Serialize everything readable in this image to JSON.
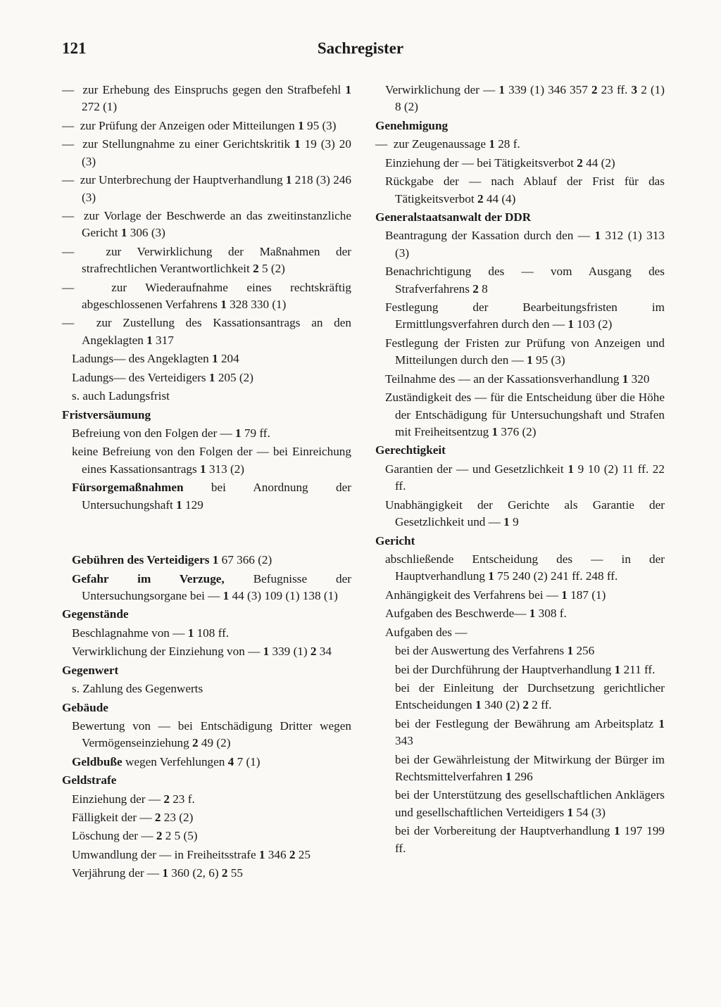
{
  "page_number": "121",
  "title": "Sachregister",
  "left_col": [
    {
      "t": "dash",
      "html": "zur Erhebung des Einspruchs gegen den Strafbefehl  <b>1</b> 272 (1)"
    },
    {
      "t": "dash",
      "html": "zur Prüfung der Anzeigen oder Mitteilungen  <b>1</b> 95 (3)"
    },
    {
      "t": "dash",
      "html": "zur Stellungnahme zu einer Gerichtskritik  <b>1</b> 19 (3) 20 (3)"
    },
    {
      "t": "dash",
      "html": "zur Unterbrechung der Hauptverhandlung  <b>1</b> 218 (3) 246 (3)"
    },
    {
      "t": "dash",
      "html": "zur Vorlage der Beschwerde an das zweitinstanzliche Gericht  <b>1</b> 306 (3)"
    },
    {
      "t": "dash",
      "html": "zur Verwirklichung der Maßnahmen der strafrechtlichen Verantwortlichkeit  <b>2</b> 5 (2)"
    },
    {
      "t": "dash",
      "html": "zur Wiederaufnahme eines rechtskräftig abgeschlossenen Verfahrens  <b>1</b> 328 330 (1)"
    },
    {
      "t": "dash",
      "html": "zur Zustellung des Kassationsantrags an den Angeklagten  <b>1</b> 317"
    },
    {
      "t": "line",
      "html": "Ladungs— des Angeklagten  <b>1</b> 204"
    },
    {
      "t": "line",
      "html": "Ladungs— des Verteidigers  <b>1</b> 205 (2)"
    },
    {
      "t": "line",
      "html": "s. auch Ladungsfrist"
    },
    {
      "t": "head",
      "html": "Fristversäumung"
    },
    {
      "t": "line",
      "html": "Befreiung von den Folgen der —  <b>1</b> 79 ff."
    },
    {
      "t": "line",
      "html": "keine Befreiung von den Folgen der — bei Einreichung eines Kassationsantrags  <b>1</b> 313 (2)"
    },
    {
      "t": "line",
      "html": "<b>Fürsorgemaßnahmen</b> bei Anordnung der Untersuchungshaft  <b>1</b> 129"
    },
    {
      "t": "gap"
    },
    {
      "t": "line",
      "html": "<b>Gebühren des Verteidigers</b>  <b>1</b> 67 366 (2)"
    },
    {
      "t": "line",
      "html": "<b>Gefahr im Verzuge,</b> Befugnisse der Untersuchungsorgane bei —  <b>1</b> 44 (3) 109 (1) 138 (1)"
    },
    {
      "t": "head",
      "html": "Gegenstände"
    },
    {
      "t": "line",
      "html": "Beschlagnahme von —  <b>1</b> 108 ff."
    },
    {
      "t": "line",
      "html": "Verwirklichung der Einziehung von —  <b>1</b> 339 (1) <b>2</b> 34"
    },
    {
      "t": "head",
      "html": "Gegenwert"
    },
    {
      "t": "line",
      "html": "s. Zahlung des Gegenwerts"
    },
    {
      "t": "head",
      "html": "Gebäude"
    },
    {
      "t": "line",
      "html": "Bewertung von — bei Entschädigung Dritter wegen Vermögenseinziehung  <b>2</b> 49 (2)"
    },
    {
      "t": "line",
      "html": "<b>Geldbuße</b> wegen Verfehlungen  <b>4</b> 7 (1)"
    },
    {
      "t": "head",
      "html": "Geldstrafe"
    },
    {
      "t": "line",
      "html": "Einziehung der —  <b>2</b> 23 f."
    },
    {
      "t": "line",
      "html": "Fälligkeit der —  <b>2</b> 23 (2)"
    },
    {
      "t": "line",
      "html": "Löschung der —  <b>2</b> 2 5 (5)"
    },
    {
      "t": "line",
      "html": "Umwandlung der — in Freiheitsstrafe  <b>1</b> 346 <b>2</b> 25"
    },
    {
      "t": "line",
      "html": "Verjährung der —  <b>1</b> 360 (2, 6) <b>2</b> 55"
    }
  ],
  "right_col": [
    {
      "t": "line",
      "html": "Verwirklichung der —  <b>1</b> 339 (1) 346 357 <b>2</b> 23 ff. <b>3</b> 2 (1) 8 (2)"
    },
    {
      "t": "head",
      "html": "Genehmigung"
    },
    {
      "t": "dash",
      "html": "zur Zeugenaussage  <b>1</b> 28 f."
    },
    {
      "t": "line",
      "html": "Einziehung der — bei Tätigkeitsverbot  <b>2</b> 44 (2)"
    },
    {
      "t": "line",
      "html": "Rückgabe der — nach Ablauf der Frist für das Tätigkeitsverbot  <b>2</b> 44 (4)"
    },
    {
      "t": "head",
      "html": "Generalstaatsanwalt der DDR"
    },
    {
      "t": "line",
      "html": "Beantragung der Kassation durch den —  <b>1</b> 312 (1) 313 (3)"
    },
    {
      "t": "line",
      "html": "Benachrichtigung des — vom Ausgang des Strafverfahrens  <b>2</b> 8"
    },
    {
      "t": "line",
      "html": "Festlegung der Bearbeitungsfristen im Ermittlungsverfahren durch den —  <b>1</b> 103 (2)"
    },
    {
      "t": "line",
      "html": "Festlegung der Fristen zur Prüfung von Anzeigen und Mitteilungen durch den —  <b>1</b> 95 (3)"
    },
    {
      "t": "line",
      "html": "Teilnahme des — an der Kassationsverhandlung  <b>1</b> 320"
    },
    {
      "t": "line",
      "html": "Zuständigkeit des — für die Entscheidung über die Höhe der Entschädigung für Untersuchungshaft und Strafen mit Freiheitsentzug  <b>1</b> 376 (2)"
    },
    {
      "t": "head",
      "html": "Gerechtigkeit"
    },
    {
      "t": "line",
      "html": "Garantien der — und Gesetzlichkeit  <b>1</b> 9 10 (2) 11 ff. 22 ff."
    },
    {
      "t": "line",
      "html": "Unabhängigkeit der Gerichte als Garantie der Gesetzlichkeit und —  <b>1</b> 9"
    },
    {
      "t": "head",
      "html": "Gericht"
    },
    {
      "t": "line",
      "html": "abschließende Entscheidung des — in der Hauptverhandlung  <b>1</b> 75 240 (2) 241 ff. 248 ff."
    },
    {
      "t": "line",
      "html": "Anhängigkeit des Verfahrens bei —  <b>1</b> 187 (1)"
    },
    {
      "t": "line",
      "html": "Aufgaben des Beschwerde—  <b>1</b> 308 f."
    },
    {
      "t": "line",
      "html": "Aufgaben des —"
    },
    {
      "t": "sub",
      "html": "bei der Auswertung des Verfahrens  <b>1</b> 256"
    },
    {
      "t": "sub",
      "html": "bei der Durchführung der Hauptverhandlung  <b>1</b> 211 ff."
    },
    {
      "t": "sub",
      "html": "bei der Einleitung der Durchsetzung gerichtlicher Entscheidungen  <b>1</b> 340 (2) <b>2</b> 2 ff."
    },
    {
      "t": "sub",
      "html": "bei der Festlegung der Bewährung am Arbeitsplatz  <b>1</b> 343"
    },
    {
      "t": "sub",
      "html": "bei der Gewährleistung der Mitwirkung der Bürger im Rechtsmittelverfahren  <b>1</b> 296"
    },
    {
      "t": "sub",
      "html": "bei der Unterstützung des gesellschaftlichen Anklägers und gesellschaftlichen Verteidigers  <b>1</b> 54 (3)"
    },
    {
      "t": "sub",
      "html": "bei der Vorbereitung der Hauptverhandlung  <b>1</b> 197 199 ff."
    }
  ]
}
